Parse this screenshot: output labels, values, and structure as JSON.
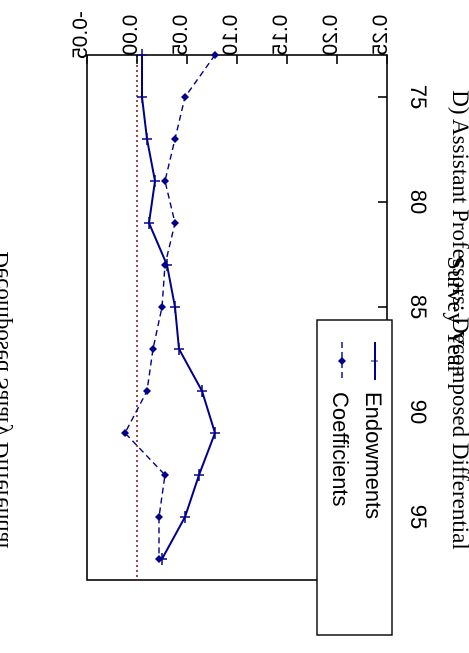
{
  "chart_data": {
    "type": "line",
    "title": "D)  Assistant Professors:  Decomposed Differential",
    "xlabel": "Survey Year",
    "ylabel": "Decomposed Salary Differential",
    "xlim": [
      73,
      98
    ],
    "ylim": [
      -0.05,
      0.25
    ],
    "x_ticks": [
      75,
      80,
      85,
      90,
      95
    ],
    "y_ticks": [
      "0.25",
      "0.20",
      "0.15",
      "0.10",
      "0.05",
      "0.00",
      "-0.05"
    ],
    "reference_line": {
      "y": 0.0,
      "style": "dotted",
      "color": "#8b1a1a"
    },
    "legend_position": "top-right",
    "series": [
      {
        "name": "Endowments",
        "style": "solid",
        "marker": "plus",
        "color": "#00008b",
        "x": [
          73,
          75,
          77,
          79,
          81,
          83,
          85,
          87,
          89,
          91,
          93,
          95,
          97
        ],
        "y": [
          0.005,
          0.005,
          0.01,
          0.018,
          0.012,
          0.03,
          0.038,
          0.042,
          0.065,
          0.078,
          0.062,
          0.048,
          0.025
        ]
      },
      {
        "name": "Coefficients",
        "style": "dashed",
        "marker": "diamond",
        "color": "#00008b",
        "x": [
          73,
          75,
          77,
          79,
          81,
          83,
          85,
          87,
          89,
          91,
          93,
          95,
          97
        ],
        "y": [
          0.078,
          0.048,
          0.038,
          0.028,
          0.038,
          0.028,
          0.025,
          0.016,
          0.01,
          -0.012,
          0.028,
          0.022,
          0.022
        ]
      }
    ]
  }
}
